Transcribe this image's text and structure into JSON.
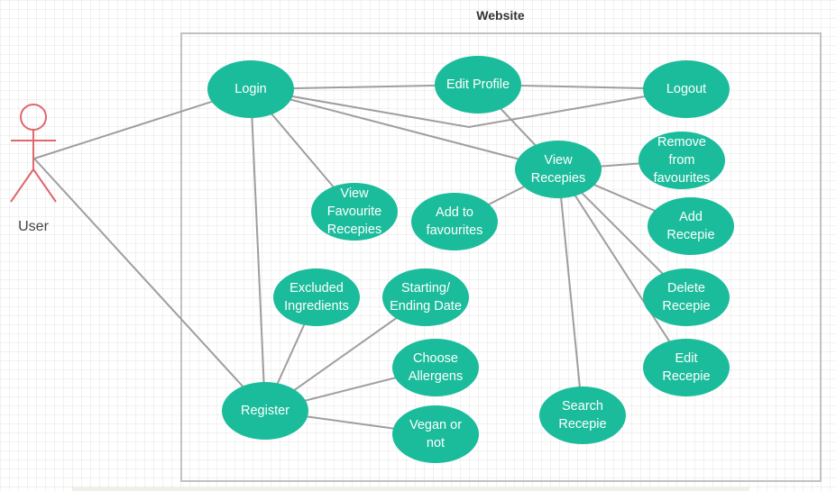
{
  "colors": {
    "usecase_fill": "#1bbc9b",
    "usecase_text": "#ffffff",
    "actor_stroke": "#e0676c",
    "connector": "#9e9e9e",
    "system_border": "#c2c2c2",
    "title_text": "#333333",
    "actor_label": "#444444"
  },
  "system": {
    "title": "Website"
  },
  "actor": {
    "label": "User"
  },
  "usecases": [
    {
      "id": "login",
      "lines": [
        "Login"
      ]
    },
    {
      "id": "edit-profile",
      "lines": [
        "Edit Profile"
      ]
    },
    {
      "id": "logout",
      "lines": [
        "Logout"
      ]
    },
    {
      "id": "view-recepies",
      "lines": [
        "View",
        "Recepies"
      ]
    },
    {
      "id": "remove-from-favourites",
      "lines": [
        "Remove",
        "from",
        "favourites"
      ]
    },
    {
      "id": "view-favourite-recepies",
      "lines": [
        "View",
        "Favourite",
        "Recepies"
      ]
    },
    {
      "id": "add-to-favourites",
      "lines": [
        "Add to",
        "favourites"
      ]
    },
    {
      "id": "add-recepie",
      "lines": [
        "Add",
        "Recepie"
      ]
    },
    {
      "id": "excluded-ingredients",
      "lines": [
        "Excluded",
        "Ingredients"
      ]
    },
    {
      "id": "starting-ending-date",
      "lines": [
        "Starting/",
        "Ending Date"
      ]
    },
    {
      "id": "delete-recepie",
      "lines": [
        "Delete",
        "Recepie"
      ]
    },
    {
      "id": "choose-allergens",
      "lines": [
        "Choose",
        "Allergens"
      ]
    },
    {
      "id": "edit-recepie",
      "lines": [
        "Edit",
        "Recepie"
      ]
    },
    {
      "id": "register",
      "lines": [
        "Register"
      ]
    },
    {
      "id": "search-recepie",
      "lines": [
        "Search",
        "Recepie"
      ]
    },
    {
      "id": "vegan-or-not",
      "lines": [
        "Vegan or",
        "not"
      ]
    }
  ],
  "associations": [
    [
      "user",
      "login"
    ],
    [
      "user",
      "register"
    ],
    [
      "login",
      "edit-profile"
    ],
    [
      "edit-profile",
      "logout"
    ],
    [
      "login",
      "logout"
    ],
    [
      "login",
      "view-recepies"
    ],
    [
      "login",
      "view-favourite-recepies"
    ],
    [
      "login",
      "register"
    ],
    [
      "edit-profile",
      "view-recepies"
    ],
    [
      "view-recepies",
      "remove-from-favourites"
    ],
    [
      "view-recepies",
      "add-to-favourites"
    ],
    [
      "view-recepies",
      "add-recepie"
    ],
    [
      "view-recepies",
      "delete-recepie"
    ],
    [
      "view-recepies",
      "edit-recepie"
    ],
    [
      "view-recepies",
      "search-recepie"
    ],
    [
      "register",
      "excluded-ingredients"
    ],
    [
      "register",
      "starting-ending-date"
    ],
    [
      "register",
      "choose-allergens"
    ],
    [
      "register",
      "vegan-or-not"
    ]
  ]
}
